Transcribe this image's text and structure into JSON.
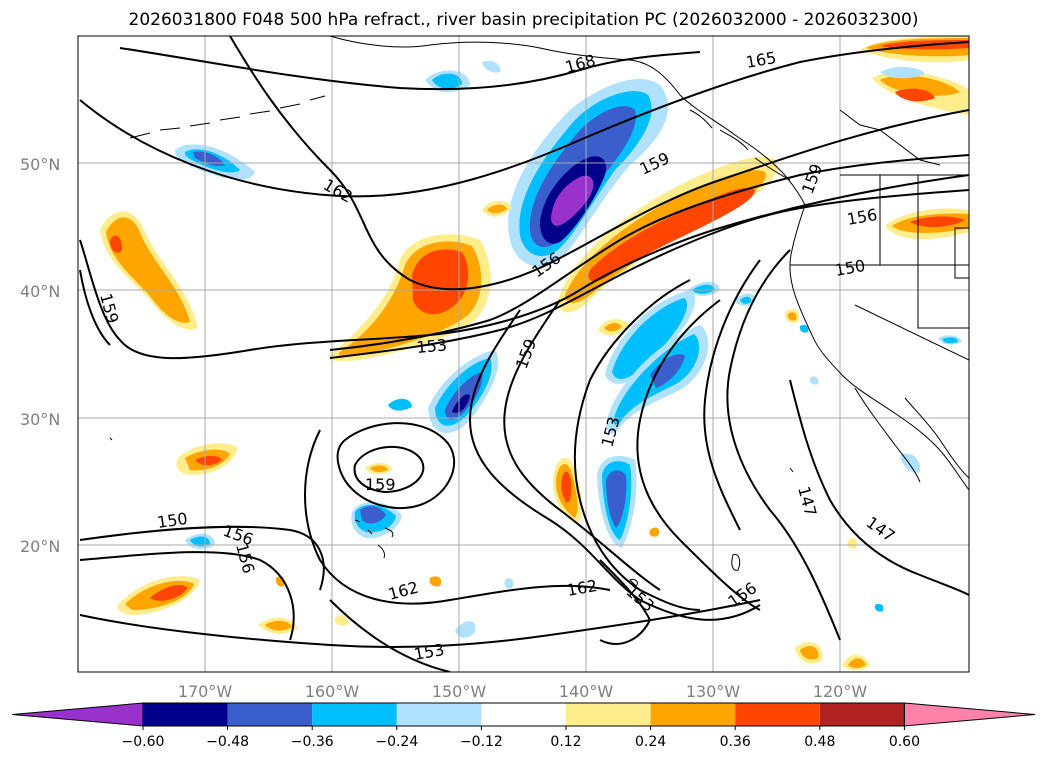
{
  "title": "2026031800 F048 500 hPa refract., river basin precipitation PC (2026032000 - 2026032300)",
  "axes": {
    "lat_labels": [
      "50°N",
      "40°N",
      "30°N",
      "20°N"
    ],
    "lon_labels": [
      "170°W",
      "160°W",
      "150°W",
      "140°W",
      "130°W",
      "120°W"
    ]
  },
  "contour_labels": [
    "168",
    "165",
    "162",
    "159",
    "159",
    "159",
    "159",
    "159",
    "156",
    "156",
    "156",
    "156",
    "153",
    "153",
    "153",
    "153",
    "150",
    "150",
    "147",
    "147",
    "162",
    "162",
    "156"
  ],
  "colorbar": {
    "ticks": [
      "−0.60",
      "−0.48",
      "−0.36",
      "−0.24",
      "−0.12",
      "0.12",
      "0.24",
      "0.36",
      "0.48",
      "0.60"
    ],
    "colors": [
      "#9932cc",
      "#00008b",
      "#3a5fcd",
      "#00bfff",
      "#b0e2ff",
      "#ffffff",
      "#ffec8b",
      "#ffa500",
      "#ff4500",
      "#b22222",
      "#ff82ab"
    ]
  },
  "colors": {
    "contour": "#000000",
    "grid": "#a9a9a9",
    "axis_label": "#808080"
  }
}
